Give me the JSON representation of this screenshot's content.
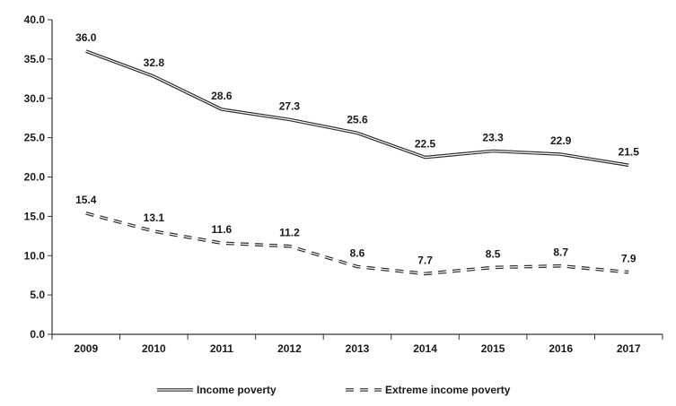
{
  "chart_data": {
    "type": "line",
    "categories": [
      "2009",
      "2010",
      "2011",
      "2012",
      "2013",
      "2014",
      "2015",
      "2016",
      "2017"
    ],
    "series": [
      {
        "name": "Income poverty",
        "style": "solid",
        "values": [
          36.0,
          32.8,
          28.6,
          27.3,
          25.6,
          22.5,
          23.3,
          22.9,
          21.5
        ],
        "labels": [
          "36.0",
          "32.8",
          "28.6",
          "27.3",
          "25.6",
          "22.5",
          "23.3",
          "22.9",
          "21.5"
        ]
      },
      {
        "name": "Extreme income poverty",
        "style": "dashed",
        "values": [
          15.4,
          13.1,
          11.6,
          11.2,
          8.6,
          7.7,
          8.5,
          8.7,
          7.9
        ],
        "labels": [
          "15.4",
          "13.1",
          "11.6",
          "11.2",
          "8.6",
          "7.7",
          "8.5",
          "8.7",
          "7.9"
        ]
      }
    ],
    "ylim": [
      0,
      40
    ],
    "yticks": [
      "0.0",
      "5.0",
      "10.0",
      "15.0",
      "20.0",
      "25.0",
      "30.0",
      "35.0",
      "40.0"
    ],
    "title": "",
    "xlabel": "",
    "ylabel": "",
    "legend_position": "bottom",
    "grid": false,
    "colors": {
      "line": "#2b2b2b",
      "text": "#1a1a1a",
      "axis": "#333333"
    }
  }
}
